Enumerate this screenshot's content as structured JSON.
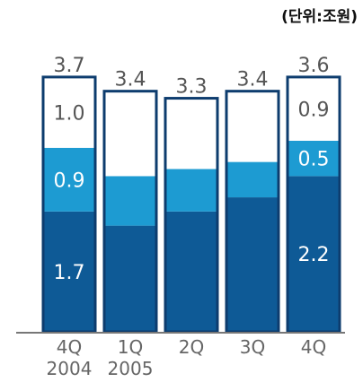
{
  "chart_data": {
    "type": "bar",
    "stacked": true,
    "unit_label": "(단위:조원)",
    "categories": [
      [
        "4Q",
        "2004"
      ],
      [
        "1Q",
        "2005"
      ],
      [
        "2Q",
        ""
      ],
      [
        "3Q",
        ""
      ],
      [
        "4Q",
        ""
      ]
    ],
    "series": [
      {
        "values": [
          1.7,
          1.5,
          1.7,
          1.9,
          2.2
        ],
        "labels": [
          "1.7",
          "",
          "",
          "",
          "2.2"
        ],
        "color": "#0e5a96"
      },
      {
        "values": [
          0.9,
          0.7,
          0.6,
          0.5,
          0.5
        ],
        "labels": [
          "0.9",
          "",
          "",
          "",
          "0.5"
        ],
        "color": "#1d9bd2"
      },
      {
        "values": [
          1.0,
          1.2,
          1.0,
          1.0,
          0.9
        ],
        "labels": [
          "1.0",
          "",
          "",
          "",
          "0.9"
        ],
        "color": "#ffffff"
      }
    ],
    "totals": [
      "3.7",
      "3.4",
      "3.3",
      "3.4",
      "3.6"
    ],
    "border_color": "#0d3c6e",
    "ylim": [
      0,
      3.7
    ],
    "grid": false,
    "legend": "none"
  }
}
